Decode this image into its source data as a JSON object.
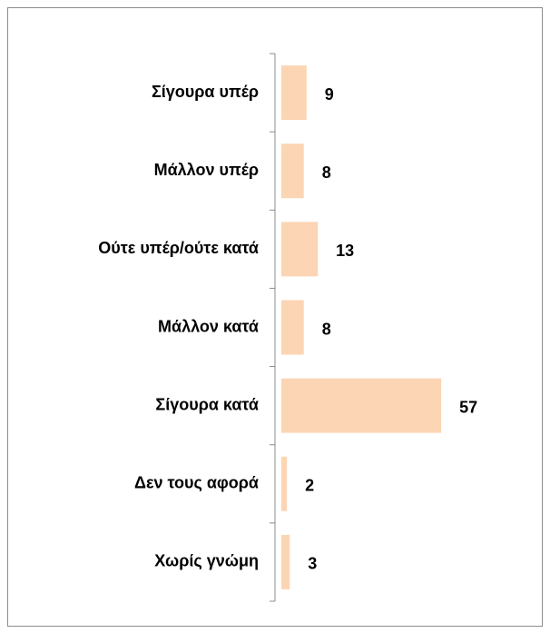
{
  "chart_data": {
    "type": "bar",
    "orientation": "horizontal",
    "categories": [
      "Σίγουρα υπέρ",
      "Μάλλον υπέρ",
      "Ούτε υπέρ/ούτε κατά",
      "Μάλλον κατά",
      "Σίγουρα κατά",
      "Δεν τους αφορά",
      "Χωρίς γνώμη"
    ],
    "values": [
      9,
      8,
      13,
      8,
      57,
      2,
      3
    ],
    "color": "#fcd5b4"
  }
}
